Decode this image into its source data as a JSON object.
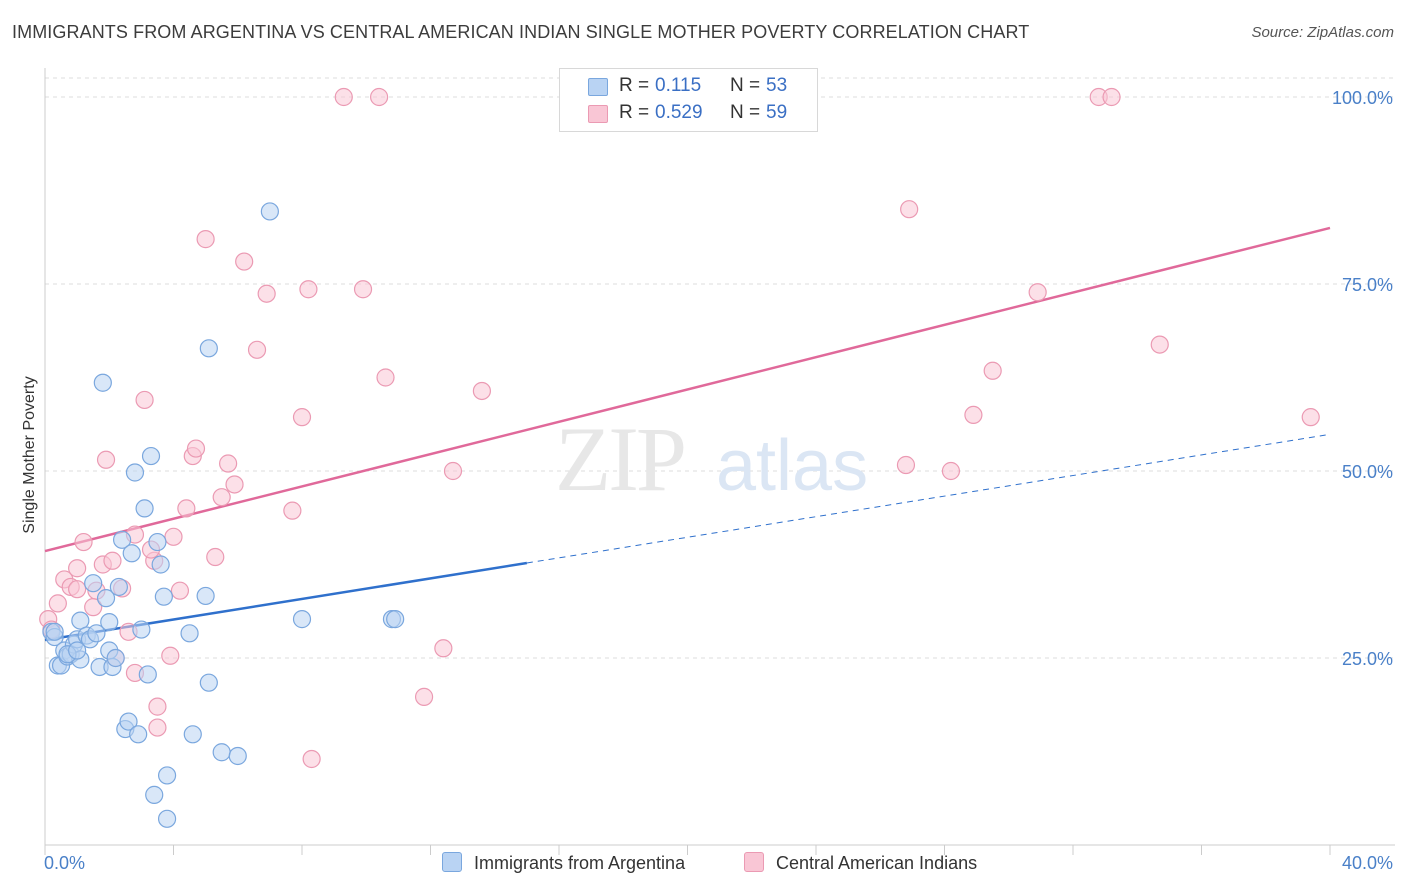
{
  "header": {
    "title": "IMMIGRANTS FROM ARGENTINA VS CENTRAL AMERICAN INDIAN SINGLE MOTHER POVERTY CORRELATION CHART",
    "source": "Source: ZipAtlas.com"
  },
  "watermark": {
    "zip": "ZIP",
    "atlas": "atlas"
  },
  "legend": {
    "rows": [
      {
        "r_label": "R =",
        "r_value": "0.115",
        "n_label": "N =",
        "n_value": "53"
      },
      {
        "r_label": "R =",
        "r_value": "0.529",
        "n_label": "N =",
        "n_value": "59"
      }
    ]
  },
  "colors": {
    "blue_fill": "#b9d3f3",
    "blue_stroke": "#7aa7de",
    "blue_line": "#2f70cc",
    "pink_fill": "#f9c6d5",
    "pink_stroke": "#eb9ab3",
    "pink_line": "#e0699a",
    "grid": "#dddddd",
    "tick_text": "#4a80c8"
  },
  "chart_data": {
    "type": "scatter",
    "title": "IMMIGRANTS FROM ARGENTINA VS CENTRAL AMERICAN INDIAN SINGLE MOTHER POVERTY CORRELATION CHART",
    "xlabel": "",
    "ylabel": "Single Mother Poverty",
    "xlim": [
      0,
      40
    ],
    "ylim": [
      0,
      100
    ],
    "x_tick_labels": [
      "0.0%",
      "40.0%"
    ],
    "y_tick_labels": [
      "25.0%",
      "50.0%",
      "75.0%",
      "100.0%"
    ],
    "y_tick_values": [
      25,
      50,
      75,
      100
    ],
    "legend_position": "top-center",
    "grid": true,
    "series": [
      {
        "name": "Immigrants from Argentina",
        "color": "#b9d3f3",
        "trend": {
          "x": [
            0,
            15
          ],
          "y": [
            27.4,
            37.7
          ],
          "dashed_to": [
            40,
            54.9
          ]
        },
        "points": [
          [
            0.2,
            28.5
          ],
          [
            0.3,
            27.8
          ],
          [
            0.4,
            24.0
          ],
          [
            0.5,
            24.0
          ],
          [
            0.6,
            26.0
          ],
          [
            0.7,
            25.2
          ],
          [
            0.8,
            25.5
          ],
          [
            0.9,
            26.8
          ],
          [
            1.0,
            27.5
          ],
          [
            1.1,
            24.8
          ],
          [
            1.1,
            30.0
          ],
          [
            1.3,
            28.0
          ],
          [
            1.4,
            27.5
          ],
          [
            1.5,
            35.0
          ],
          [
            1.6,
            28.3
          ],
          [
            1.7,
            23.8
          ],
          [
            1.8,
            61.8
          ],
          [
            1.9,
            33.0
          ],
          [
            2.0,
            26.0
          ],
          [
            2.0,
            29.8
          ],
          [
            2.1,
            23.8
          ],
          [
            2.2,
            25.0
          ],
          [
            2.3,
            34.5
          ],
          [
            2.4,
            40.8
          ],
          [
            2.5,
            15.5
          ],
          [
            2.6,
            16.5
          ],
          [
            2.7,
            39.0
          ],
          [
            2.8,
            49.8
          ],
          [
            2.9,
            14.8
          ],
          [
            3.0,
            28.8
          ],
          [
            3.1,
            45.0
          ],
          [
            3.2,
            22.8
          ],
          [
            3.3,
            52.0
          ],
          [
            3.5,
            40.5
          ],
          [
            3.6,
            37.5
          ],
          [
            3.7,
            33.2
          ],
          [
            3.8,
            9.3
          ],
          [
            3.8,
            3.5
          ],
          [
            3.4,
            6.7
          ],
          [
            4.5,
            28.3
          ],
          [
            4.6,
            14.8
          ],
          [
            5.0,
            33.3
          ],
          [
            5.1,
            21.7
          ],
          [
            5.5,
            12.4
          ],
          [
            6.0,
            11.9
          ],
          [
            5.1,
            66.4
          ],
          [
            7.0,
            84.7
          ],
          [
            8.0,
            30.2
          ],
          [
            10.8,
            30.2
          ],
          [
            10.9,
            30.2
          ],
          [
            0.3,
            28.5
          ],
          [
            0.7,
            25.5
          ],
          [
            1.0,
            26.0
          ]
        ]
      },
      {
        "name": "Central American Indians",
        "color": "#f9c6d5",
        "trend": {
          "x": [
            0,
            40
          ],
          "y": [
            39.3,
            82.5
          ]
        },
        "points": [
          [
            0.1,
            30.2
          ],
          [
            0.2,
            28.8
          ],
          [
            0.4,
            32.3
          ],
          [
            0.6,
            35.5
          ],
          [
            0.8,
            34.5
          ],
          [
            1.0,
            37.0
          ],
          [
            1.0,
            34.2
          ],
          [
            1.2,
            40.5
          ],
          [
            1.5,
            31.8
          ],
          [
            1.6,
            34.0
          ],
          [
            1.8,
            37.5
          ],
          [
            1.9,
            51.5
          ],
          [
            2.1,
            38.0
          ],
          [
            2.2,
            25.0
          ],
          [
            2.4,
            34.3
          ],
          [
            2.6,
            28.5
          ],
          [
            2.8,
            41.5
          ],
          [
            2.8,
            23.0
          ],
          [
            3.1,
            59.5
          ],
          [
            3.4,
            38.0
          ],
          [
            3.3,
            39.5
          ],
          [
            3.5,
            15.7
          ],
          [
            3.5,
            18.5
          ],
          [
            3.9,
            25.3
          ],
          [
            4.0,
            41.2
          ],
          [
            4.2,
            34.0
          ],
          [
            4.4,
            45.0
          ],
          [
            4.6,
            52.0
          ],
          [
            4.7,
            53.0
          ],
          [
            5.0,
            81.0
          ],
          [
            5.3,
            38.5
          ],
          [
            5.5,
            46.5
          ],
          [
            5.7,
            51.0
          ],
          [
            5.9,
            48.2
          ],
          [
            6.2,
            78.0
          ],
          [
            6.6,
            66.2
          ],
          [
            6.9,
            73.7
          ],
          [
            7.7,
            44.7
          ],
          [
            8.0,
            57.2
          ],
          [
            8.2,
            74.3
          ],
          [
            8.3,
            11.5
          ],
          [
            9.3,
            100.0
          ],
          [
            9.9,
            74.3
          ],
          [
            10.4,
            100.0
          ],
          [
            10.6,
            62.5
          ],
          [
            11.8,
            19.8
          ],
          [
            12.4,
            26.3
          ],
          [
            12.7,
            50.0
          ],
          [
            13.6,
            60.7
          ],
          [
            26.9,
            85.0
          ],
          [
            26.8,
            50.8
          ],
          [
            28.2,
            50.0
          ],
          [
            28.9,
            57.5
          ],
          [
            29.5,
            63.4
          ],
          [
            30.9,
            73.9
          ],
          [
            32.8,
            100.0
          ],
          [
            33.2,
            100.0
          ],
          [
            34.7,
            66.9
          ],
          [
            39.4,
            57.2
          ]
        ]
      }
    ]
  },
  "bottom_legend": {
    "items": [
      {
        "label": "Immigrants from Argentina"
      },
      {
        "label": "Central American Indians"
      }
    ]
  }
}
